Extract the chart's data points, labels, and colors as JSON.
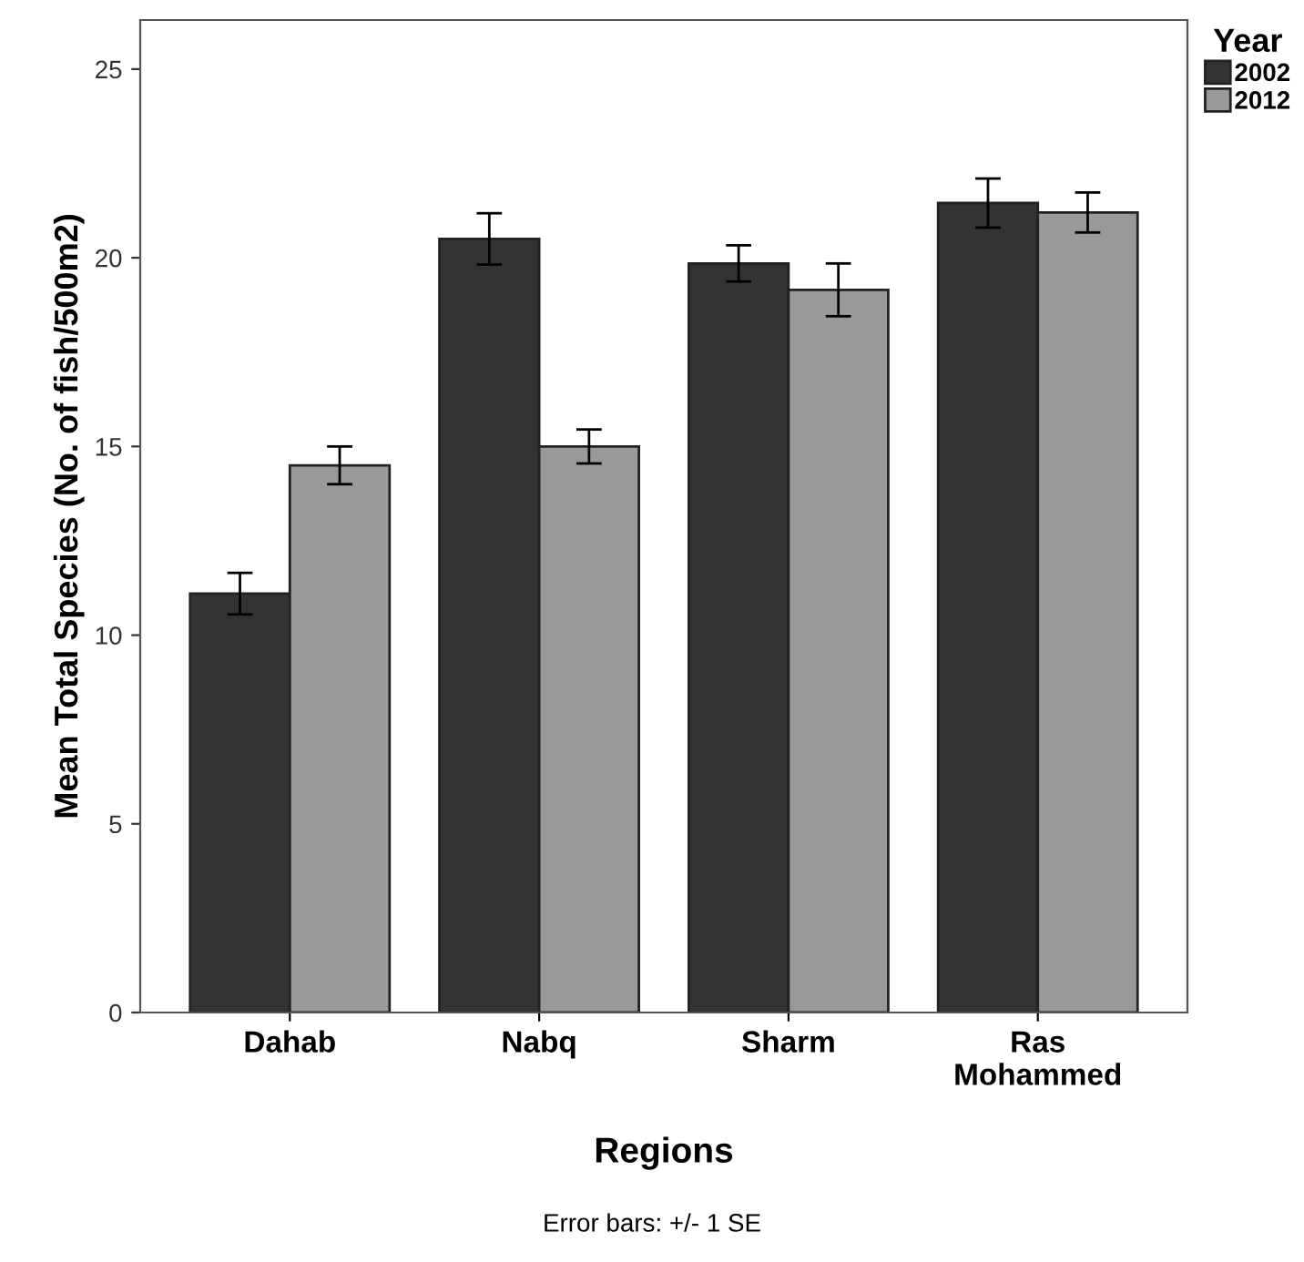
{
  "chart_data": {
    "type": "bar",
    "xlabel": "Regions",
    "ylabel": "Mean Total Species (No. of fish/500m2)",
    "legend_title": "Year",
    "categories": [
      "Dahab",
      "Nabq",
      "Sharm",
      "Ras\nMohammed"
    ],
    "series": [
      {
        "name": "2002",
        "color": "#333333",
        "values": [
          11.1,
          20.5,
          19.85,
          21.45
        ],
        "errors": [
          0.55,
          0.68,
          0.48,
          0.65
        ]
      },
      {
        "name": "2012",
        "color": "#999999",
        "values": [
          14.5,
          15.0,
          19.15,
          21.2
        ],
        "errors": [
          0.5,
          0.45,
          0.7,
          0.53
        ]
      }
    ],
    "ylim": [
      0,
      26.3
    ],
    "yticks": [
      0,
      5,
      10,
      15,
      20,
      25
    ],
    "grid": false,
    "legend": "top right",
    "annotations": [
      "Error bars: +/- 1 SE"
    ]
  }
}
